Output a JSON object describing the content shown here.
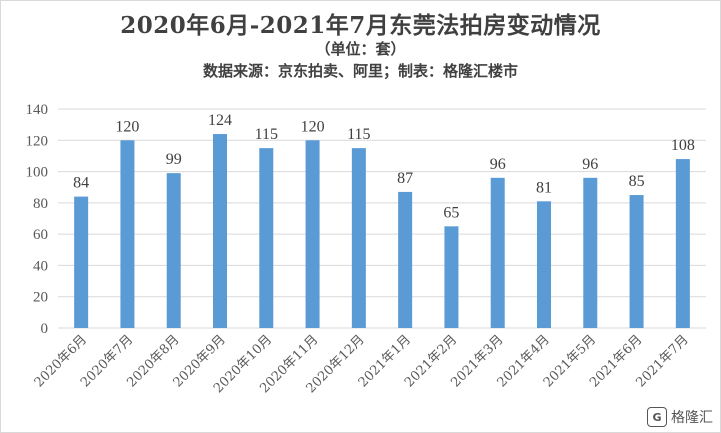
{
  "chart_data": {
    "type": "bar",
    "title": "2020年6月-2021年7月东莞法拍房变动情况",
    "subtitle": "（单位：套）",
    "source": "数据来源：京东拍卖、阿里；制表：格隆汇楼市",
    "categories": [
      "2020年6月",
      "2020年7月",
      "2020年8月",
      "2020年9月",
      "2020年10月",
      "2020年11月",
      "2020年12月",
      "2021年1月",
      "2021年2月",
      "2021年3月",
      "2021年4月",
      "2021年5月",
      "2021年6月",
      "2021年7月"
    ],
    "values": [
      84,
      120,
      99,
      124,
      115,
      120,
      115,
      87,
      65,
      96,
      81,
      96,
      85,
      108
    ],
    "ylim": [
      0,
      140
    ],
    "yticks": [
      0,
      20,
      40,
      60,
      80,
      100,
      120,
      140
    ],
    "grid": true,
    "bar_color": "#5b9bd5",
    "grid_color": "#d9d9d9",
    "xlabel": "",
    "ylabel": ""
  },
  "watermark": {
    "icon": "gelonghui-logo-icon",
    "text": "格隆汇"
  }
}
